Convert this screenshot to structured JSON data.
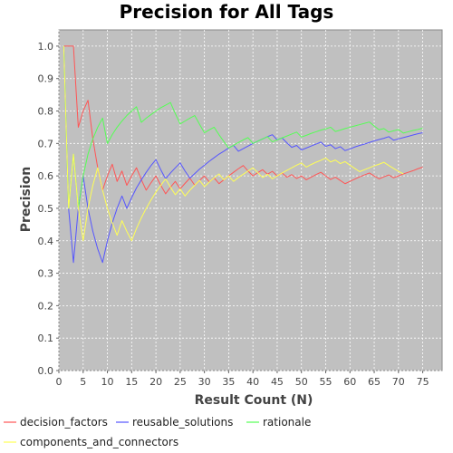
{
  "chart_data": {
    "type": "line",
    "title": "Precision for All Tags",
    "xlabel": "Result Count (N)",
    "ylabel": "Precision",
    "xlim": [
      0,
      79
    ],
    "ylim": [
      0,
      1.05
    ],
    "xticks": [
      0,
      5,
      10,
      15,
      20,
      25,
      30,
      35,
      40,
      45,
      50,
      55,
      60,
      65,
      70,
      75
    ],
    "yticks": [
      0.0,
      0.1,
      0.2,
      0.3,
      0.4,
      0.5,
      0.6,
      0.7,
      0.8,
      0.9,
      1.0
    ],
    "grid": true,
    "plot_background": "#c0c0c0",
    "legend_position": "bottom",
    "series": [
      {
        "name": "decision_factors",
        "color": "#ff5555",
        "x": [
          1,
          2,
          3,
          4,
          5,
          6,
          7,
          8,
          9,
          10,
          11,
          12,
          13,
          14,
          15,
          16,
          17,
          18,
          19,
          20,
          21,
          22,
          23,
          24,
          25,
          26,
          27,
          28,
          29,
          30,
          31,
          32,
          33,
          34,
          35,
          36,
          37,
          38,
          39,
          40,
          41,
          42,
          43,
          44,
          45,
          46,
          47,
          48,
          49,
          50,
          51,
          52,
          53,
          54,
          55,
          56,
          57,
          58,
          59,
          60,
          61,
          62,
          63,
          64,
          65,
          66,
          67,
          68,
          69,
          70,
          71,
          72,
          73,
          74,
          75
        ],
        "y": [
          1.0,
          1.0,
          1.0,
          0.75,
          0.8,
          0.833,
          0.714,
          0.625,
          0.556,
          0.6,
          0.636,
          0.583,
          0.615,
          0.571,
          0.6,
          0.625,
          0.588,
          0.556,
          0.579,
          0.6,
          0.571,
          0.545,
          0.565,
          0.583,
          0.56,
          0.577,
          0.593,
          0.571,
          0.586,
          0.6,
          0.581,
          0.594,
          0.576,
          0.588,
          0.6,
          0.611,
          0.622,
          0.632,
          0.615,
          0.6,
          0.61,
          0.619,
          0.605,
          0.614,
          0.6,
          0.609,
          0.596,
          0.604,
          0.592,
          0.6,
          0.588,
          0.596,
          0.604,
          0.611,
          0.6,
          0.589,
          0.596,
          0.586,
          0.576,
          0.583,
          0.59,
          0.597,
          0.603,
          0.609,
          0.6,
          0.591,
          0.597,
          0.603,
          0.594,
          0.6,
          0.606,
          0.611,
          0.616,
          0.622,
          0.627
        ]
      },
      {
        "name": "reusable_solutions",
        "color": "#5555ff",
        "x": [
          1,
          2,
          3,
          4,
          5,
          6,
          7,
          8,
          9,
          10,
          11,
          12,
          13,
          14,
          15,
          16,
          17,
          18,
          19,
          20,
          21,
          22,
          23,
          24,
          25,
          26,
          27,
          28,
          29,
          30,
          31,
          32,
          33,
          34,
          35,
          36,
          37,
          38,
          39,
          40,
          41,
          42,
          43,
          44,
          45,
          46,
          47,
          48,
          49,
          50,
          51,
          52,
          53,
          54,
          55,
          56,
          57,
          58,
          59,
          60,
          61,
          62,
          63,
          64,
          65,
          66,
          67,
          68,
          69,
          70,
          71,
          72,
          73,
          74,
          75
        ],
        "y": [
          1.0,
          0.5,
          0.333,
          0.5,
          0.6,
          0.5,
          0.429,
          0.375,
          0.333,
          0.4,
          0.455,
          0.5,
          0.538,
          0.5,
          0.533,
          0.563,
          0.588,
          0.611,
          0.632,
          0.65,
          0.619,
          0.591,
          0.609,
          0.625,
          0.64,
          0.615,
          0.593,
          0.607,
          0.621,
          0.633,
          0.645,
          0.656,
          0.667,
          0.676,
          0.686,
          0.694,
          0.676,
          0.684,
          0.692,
          0.7,
          0.707,
          0.714,
          0.721,
          0.727,
          0.711,
          0.717,
          0.702,
          0.688,
          0.694,
          0.68,
          0.686,
          0.692,
          0.698,
          0.704,
          0.691,
          0.696,
          0.684,
          0.69,
          0.678,
          0.683,
          0.689,
          0.694,
          0.698,
          0.703,
          0.708,
          0.712,
          0.716,
          0.721,
          0.71,
          0.714,
          0.718,
          0.722,
          0.726,
          0.73,
          0.733
        ]
      },
      {
        "name": "rationale",
        "color": "#55ff55",
        "x": [
          1,
          2,
          3,
          4,
          5,
          6,
          7,
          8,
          9,
          10,
          11,
          12,
          13,
          14,
          15,
          16,
          17,
          18,
          19,
          20,
          21,
          22,
          23,
          24,
          25,
          26,
          27,
          28,
          29,
          30,
          31,
          32,
          33,
          34,
          35,
          36,
          37,
          38,
          39,
          40,
          41,
          42,
          43,
          44,
          45,
          46,
          47,
          48,
          49,
          50,
          51,
          52,
          53,
          54,
          55,
          56,
          57,
          58,
          59,
          60,
          61,
          62,
          63,
          64,
          65,
          66,
          67,
          68,
          69,
          70,
          71,
          72,
          73,
          74,
          75
        ],
        "y": [
          1.0,
          0.5,
          0.667,
          0.5,
          0.6,
          0.667,
          0.714,
          0.75,
          0.778,
          0.7,
          0.727,
          0.75,
          0.769,
          0.786,
          0.8,
          0.813,
          0.765,
          0.778,
          0.789,
          0.8,
          0.81,
          0.818,
          0.826,
          0.792,
          0.76,
          0.769,
          0.778,
          0.786,
          0.759,
          0.733,
          0.742,
          0.75,
          0.727,
          0.706,
          0.686,
          0.694,
          0.703,
          0.711,
          0.718,
          0.7,
          0.707,
          0.714,
          0.721,
          0.705,
          0.711,
          0.717,
          0.723,
          0.729,
          0.735,
          0.72,
          0.725,
          0.731,
          0.736,
          0.741,
          0.745,
          0.75,
          0.737,
          0.741,
          0.746,
          0.75,
          0.754,
          0.758,
          0.762,
          0.766,
          0.754,
          0.742,
          0.746,
          0.735,
          0.739,
          0.743,
          0.732,
          0.736,
          0.74,
          0.743,
          0.747
        ]
      },
      {
        "name": "components_and_connectors",
        "color": "#ffff55",
        "x": [
          1,
          2,
          3,
          4,
          5,
          6,
          7,
          8,
          9,
          10,
          11,
          12,
          13,
          14,
          15,
          16,
          17,
          18,
          19,
          20,
          21,
          22,
          23,
          24,
          25,
          26,
          27,
          28,
          29,
          30,
          31,
          32,
          33,
          34,
          35,
          36,
          37,
          38,
          39,
          40,
          41,
          42,
          43,
          44,
          45,
          46,
          47,
          48,
          49,
          50,
          51,
          52,
          53,
          54,
          55,
          56,
          57,
          58,
          59,
          60,
          61,
          62,
          63,
          64,
          65,
          66,
          67,
          68,
          69,
          70,
          71
        ],
        "y": [
          1.0,
          0.5,
          0.667,
          0.5,
          0.4,
          0.5,
          0.571,
          0.625,
          0.556,
          0.5,
          0.455,
          0.417,
          0.462,
          0.429,
          0.4,
          0.438,
          0.471,
          0.5,
          0.526,
          0.55,
          0.571,
          0.591,
          0.565,
          0.542,
          0.56,
          0.538,
          0.556,
          0.571,
          0.586,
          0.567,
          0.581,
          0.594,
          0.606,
          0.588,
          0.6,
          0.583,
          0.595,
          0.605,
          0.615,
          0.625,
          0.61,
          0.595,
          0.605,
          0.591,
          0.6,
          0.609,
          0.617,
          0.625,
          0.633,
          0.64,
          0.627,
          0.635,
          0.642,
          0.648,
          0.655,
          0.643,
          0.649,
          0.638,
          0.644,
          0.633,
          0.623,
          0.613,
          0.619,
          0.625,
          0.631,
          0.636,
          0.642,
          0.632,
          0.623,
          0.614,
          0.606
        ]
      }
    ]
  }
}
